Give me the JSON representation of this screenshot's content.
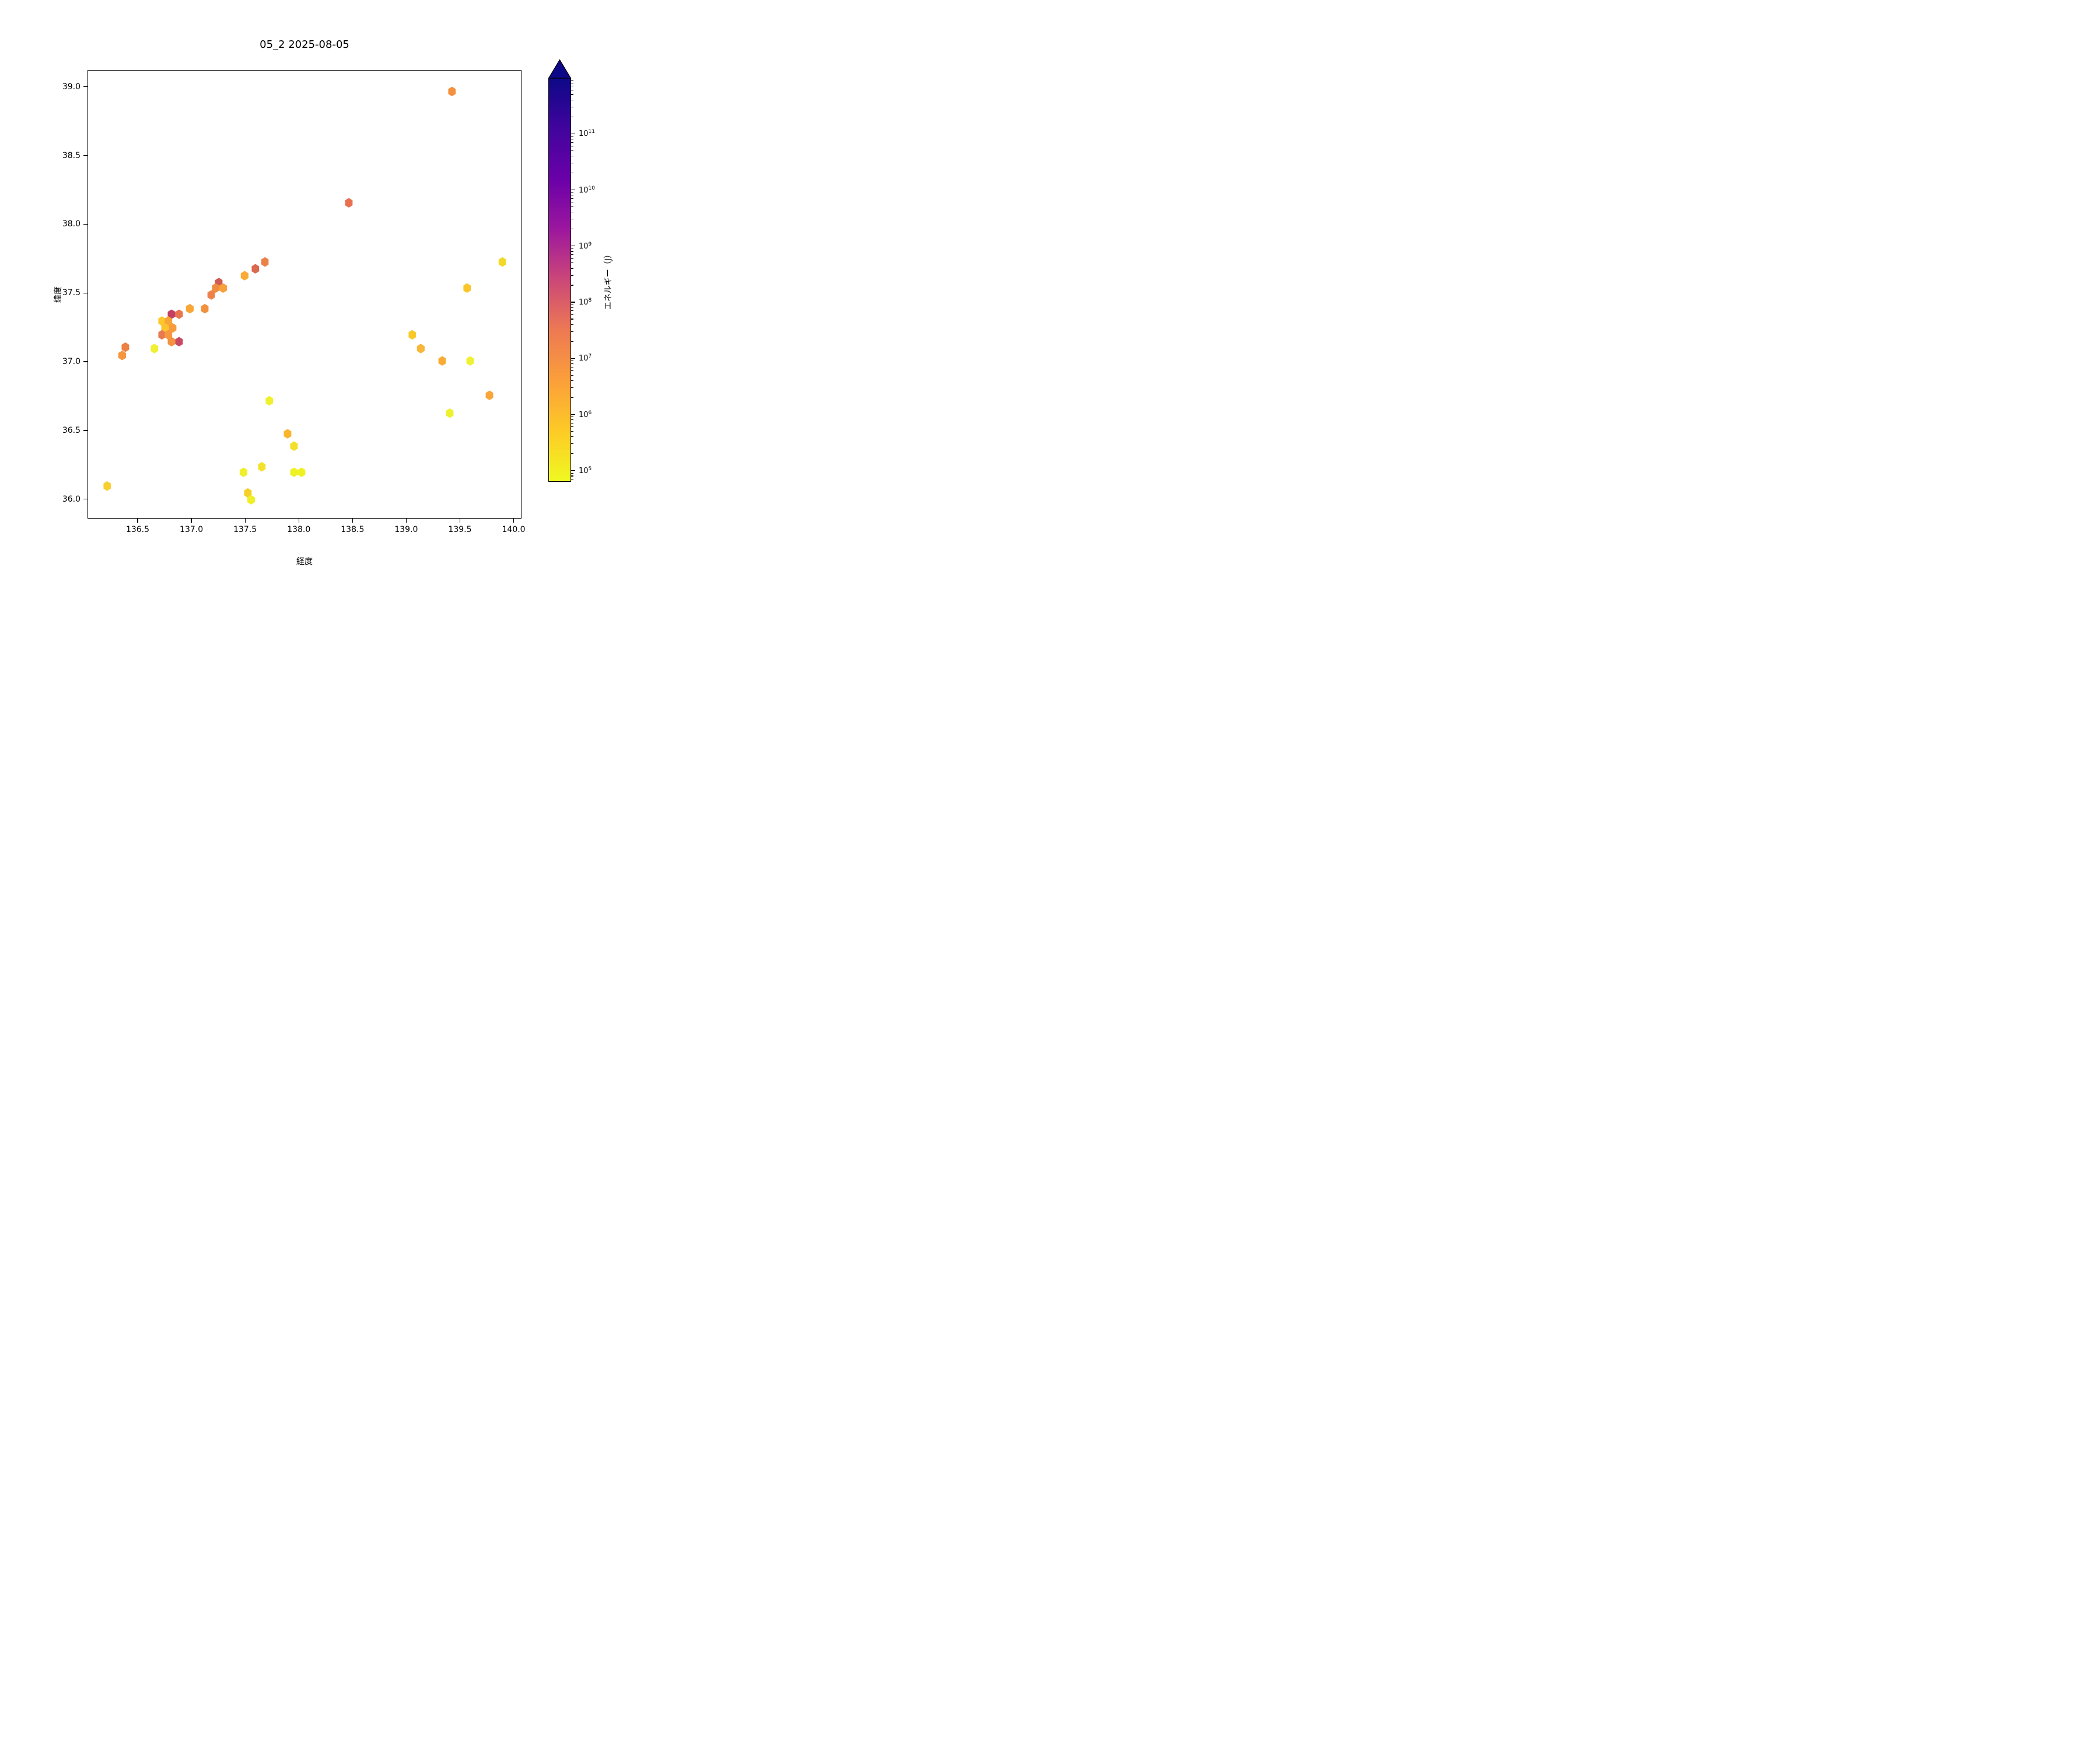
{
  "title": "05_2 2025-08-05",
  "axes": {
    "xlabel": "経度",
    "ylabel": "緯度",
    "xticks": [
      "136.5",
      "137.0",
      "137.5",
      "138.0",
      "138.5",
      "139.0",
      "139.5",
      "140.0"
    ],
    "yticks": [
      "36.0",
      "36.5",
      "37.0",
      "37.5",
      "38.0",
      "38.5",
      "39.0"
    ]
  },
  "colorbar": {
    "label": "エネルギー（J）",
    "tick_exponents": [
      5,
      6,
      7,
      8,
      9,
      10,
      11
    ],
    "log_range": [
      4.8,
      12.0
    ],
    "extend": "max",
    "colormap": "plasma_r",
    "arrow_color": "#0d0887"
  },
  "chart_data": {
    "type": "scatter",
    "marker": "hexagon",
    "title": "05_2 2025-08-05",
    "xlabel": "経度",
    "ylabel": "緯度",
    "xlim": [
      136.033,
      140.073
    ],
    "ylim": [
      35.859,
      39.122
    ],
    "grid": false,
    "legend": "colorbar-right",
    "color_scale": "log10 energy (J), plasma reversed, 1e5 yellow to 1e11 navy",
    "points": [
      {
        "lon": 139.42,
        "lat": 38.97,
        "color": "#f4913f",
        "energy_J": 4000000
      },
      {
        "lon": 138.46,
        "lat": 38.16,
        "color": "#e87050",
        "energy_J": 15000000
      },
      {
        "lon": 137.68,
        "lat": 37.73,
        "color": "#ec8147",
        "energy_J": 7000000
      },
      {
        "lon": 139.89,
        "lat": 37.73,
        "color": "#f2d929",
        "energy_J": 250000
      },
      {
        "lon": 137.59,
        "lat": 37.68,
        "color": "#da6950",
        "energy_J": 30000000
      },
      {
        "lon": 137.49,
        "lat": 37.63,
        "color": "#f9ab35",
        "energy_J": 1500000
      },
      {
        "lon": 137.25,
        "lat": 37.58,
        "color": "#d05a54",
        "energy_J": 50000000
      },
      {
        "lon": 139.56,
        "lat": 37.54,
        "color": "#f9c52b",
        "energy_J": 400000
      },
      {
        "lon": 137.22,
        "lat": 37.54,
        "color": "#f08c41",
        "energy_J": 5000000
      },
      {
        "lon": 137.29,
        "lat": 37.54,
        "color": "#f8a03c",
        "energy_J": 1500000
      },
      {
        "lon": 137.18,
        "lat": 37.49,
        "color": "#ed8148",
        "energy_J": 7000000
      },
      {
        "lon": 136.98,
        "lat": 37.39,
        "color": "#f9a738",
        "energy_J": 1500000
      },
      {
        "lon": 137.12,
        "lat": 37.39,
        "color": "#f1903d",
        "energy_J": 4000000
      },
      {
        "lon": 136.81,
        "lat": 37.35,
        "color": "#c44061",
        "energy_J": 120000000
      },
      {
        "lon": 136.88,
        "lat": 37.35,
        "color": "#e8754e",
        "energy_J": 12000000
      },
      {
        "lon": 136.72,
        "lat": 37.3,
        "color": "#fcc82b",
        "energy_J": 400000
      },
      {
        "lon": 136.78,
        "lat": 37.3,
        "color": "#f9a437",
        "energy_J": 1500000
      },
      {
        "lon": 136.75,
        "lat": 37.25,
        "color": "#fcc32d",
        "energy_J": 400000
      },
      {
        "lon": 136.82,
        "lat": 37.25,
        "color": "#f79c3c",
        "energy_J": 1500000
      },
      {
        "lon": 136.72,
        "lat": 37.2,
        "color": "#e87a51",
        "energy_J": 10000000
      },
      {
        "lon": 136.78,
        "lat": 37.2,
        "color": "#f79840",
        "energy_J": 1500000
      },
      {
        "lon": 136.81,
        "lat": 37.15,
        "color": "#f5923f",
        "energy_J": 4000000
      },
      {
        "lon": 136.88,
        "lat": 37.15,
        "color": "#c84a62",
        "energy_J": 100000000
      },
      {
        "lon": 136.65,
        "lat": 37.1,
        "color": "#eff032",
        "energy_J": 100000
      },
      {
        "lon": 136.38,
        "lat": 37.11,
        "color": "#ec8144",
        "energy_J": 7000000
      },
      {
        "lon": 136.35,
        "lat": 37.05,
        "color": "#f5953e",
        "energy_J": 4000000
      },
      {
        "lon": 139.05,
        "lat": 37.2,
        "color": "#f9c929",
        "energy_J": 400000
      },
      {
        "lon": 139.13,
        "lat": 37.1,
        "color": "#f8b73a",
        "energy_J": 800000
      },
      {
        "lon": 139.33,
        "lat": 37.01,
        "color": "#f8ac33",
        "energy_J": 1500000
      },
      {
        "lon": 139.59,
        "lat": 37.01,
        "color": "#eff233",
        "energy_J": 100000
      },
      {
        "lon": 139.77,
        "lat": 36.76,
        "color": "#f9a53a",
        "energy_J": 1500000
      },
      {
        "lon": 139.4,
        "lat": 36.63,
        "color": "#eef12f",
        "energy_J": 100000
      },
      {
        "lon": 137.72,
        "lat": 36.72,
        "color": "#eef12b",
        "energy_J": 100000
      },
      {
        "lon": 137.89,
        "lat": 36.48,
        "color": "#fbb52d",
        "energy_J": 800000
      },
      {
        "lon": 137.95,
        "lat": 36.39,
        "color": "#f2e028",
        "energy_J": 150000
      },
      {
        "lon": 137.65,
        "lat": 36.24,
        "color": "#f3e22c",
        "energy_J": 150000
      },
      {
        "lon": 137.48,
        "lat": 36.2,
        "color": "#eff02c",
        "energy_J": 100000
      },
      {
        "lon": 137.95,
        "lat": 36.2,
        "color": "#eef225",
        "energy_J": 80000
      },
      {
        "lon": 138.02,
        "lat": 36.2,
        "color": "#eef225",
        "energy_J": 80000
      },
      {
        "lon": 137.52,
        "lat": 36.05,
        "color": "#f5d029",
        "energy_J": 250000
      },
      {
        "lon": 137.55,
        "lat": 36.0,
        "color": "#eef02a",
        "energy_J": 100000
      },
      {
        "lon": 136.21,
        "lat": 36.1,
        "color": "#f9ce30",
        "energy_J": 400000
      }
    ]
  }
}
